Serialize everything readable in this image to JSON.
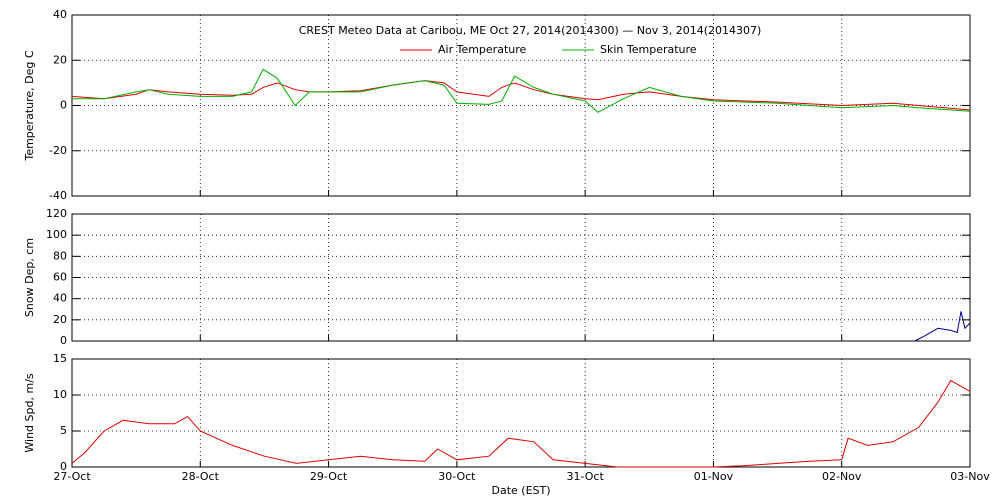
{
  "chart_data": [
    {
      "type": "line",
      "title": "CREST Meteo Data at Caribou, ME   Oct 27, 2014(2014300) — Nov  3, 2014(2014307)",
      "y_label": "Temperature, Deg C",
      "x": [
        0,
        0.25,
        0.5,
        0.6,
        0.75,
        1,
        1.25,
        1.4,
        1.49,
        1.6,
        1.74,
        1.85,
        2,
        2.25,
        2.5,
        2.75,
        2.9,
        3,
        3.25,
        3.35,
        3.45,
        3.6,
        3.75,
        4,
        4.1,
        4.3,
        4.5,
        4.75,
        5,
        5.5,
        6,
        6.4,
        6.6,
        7
      ],
      "series": [
        {
          "name": "Air Temperature",
          "color": "#e00000",
          "values": [
            4,
            3,
            5,
            7,
            6,
            5,
            4.5,
            5,
            8,
            10,
            7,
            6,
            6,
            6.5,
            9,
            11,
            10,
            6,
            4,
            8,
            10,
            7,
            5,
            3,
            2.5,
            5,
            6,
            4,
            2.5,
            1.5,
            0,
            1,
            0,
            -2
          ]
        },
        {
          "name": "Skin Temperature",
          "color": "#00b000",
          "values": [
            3,
            3,
            6,
            7,
            5,
            4,
            4,
            6,
            16,
            12,
            0,
            6,
            6,
            6,
            9,
            11,
            9,
            1,
            0.5,
            2,
            13,
            8,
            5,
            2,
            -3,
            3,
            8,
            4,
            2,
            1,
            -1,
            0,
            -1,
            -2.5
          ]
        }
      ],
      "ylim": [
        -40,
        40
      ],
      "yticks": [
        -40,
        -20,
        0,
        20,
        40
      ],
      "grid": true,
      "legend": "top"
    },
    {
      "type": "line",
      "y_label": "Snow Dep, cm",
      "x": [
        6.57,
        6.65,
        6.75,
        6.85,
        6.9,
        6.93,
        6.96,
        7
      ],
      "series": [
        {
          "color": "#000090",
          "values": [
            0,
            5,
            12,
            10,
            8,
            28,
            12,
            17
          ]
        }
      ],
      "ylim": [
        0,
        120
      ],
      "yticks": [
        0,
        20,
        40,
        60,
        80,
        100,
        120
      ],
      "grid": true
    },
    {
      "type": "line",
      "y_label": "Wind Spd, m/s",
      "x_label": "Date (EST)",
      "x": [
        0,
        0.1,
        0.25,
        0.4,
        0.6,
        0.8,
        0.9,
        1,
        1.25,
        1.5,
        1.75,
        2,
        2.25,
        2.5,
        2.75,
        2.85,
        3,
        3.25,
        3.4,
        3.6,
        3.75,
        4,
        4.25,
        4.5,
        4.75,
        5,
        5.25,
        5.5,
        5.75,
        6,
        6.05,
        6.2,
        6.4,
        6.6,
        6.75,
        6.85,
        7
      ],
      "series": [
        {
          "color": "#e00000",
          "values": [
            0.5,
            2,
            5,
            6.5,
            6,
            6,
            7,
            5,
            3,
            1.5,
            0.5,
            1,
            1.5,
            1,
            0.8,
            2.5,
            1,
            1.5,
            4,
            3.5,
            1,
            0.5,
            0,
            0,
            0,
            0,
            0.2,
            0.5,
            0.8,
            1,
            4,
            3,
            3.5,
            5.5,
            9,
            12,
            10.5
          ]
        }
      ],
      "ylim": [
        0,
        15
      ],
      "yticks": [
        0,
        5,
        10,
        15
      ],
      "grid": true,
      "xlim": [
        0,
        7
      ],
      "xticks": [
        {
          "value": 0,
          "label": "27-Oct"
        },
        {
          "value": 1,
          "label": "28-Oct"
        },
        {
          "value": 2,
          "label": "29-Oct"
        },
        {
          "value": 3,
          "label": "30-Oct"
        },
        {
          "value": 4,
          "label": "31-Oct"
        },
        {
          "value": 5,
          "label": "01-Nov"
        },
        {
          "value": 6,
          "label": "02-Nov"
        },
        {
          "value": 7,
          "label": "03-Nov"
        }
      ]
    }
  ]
}
